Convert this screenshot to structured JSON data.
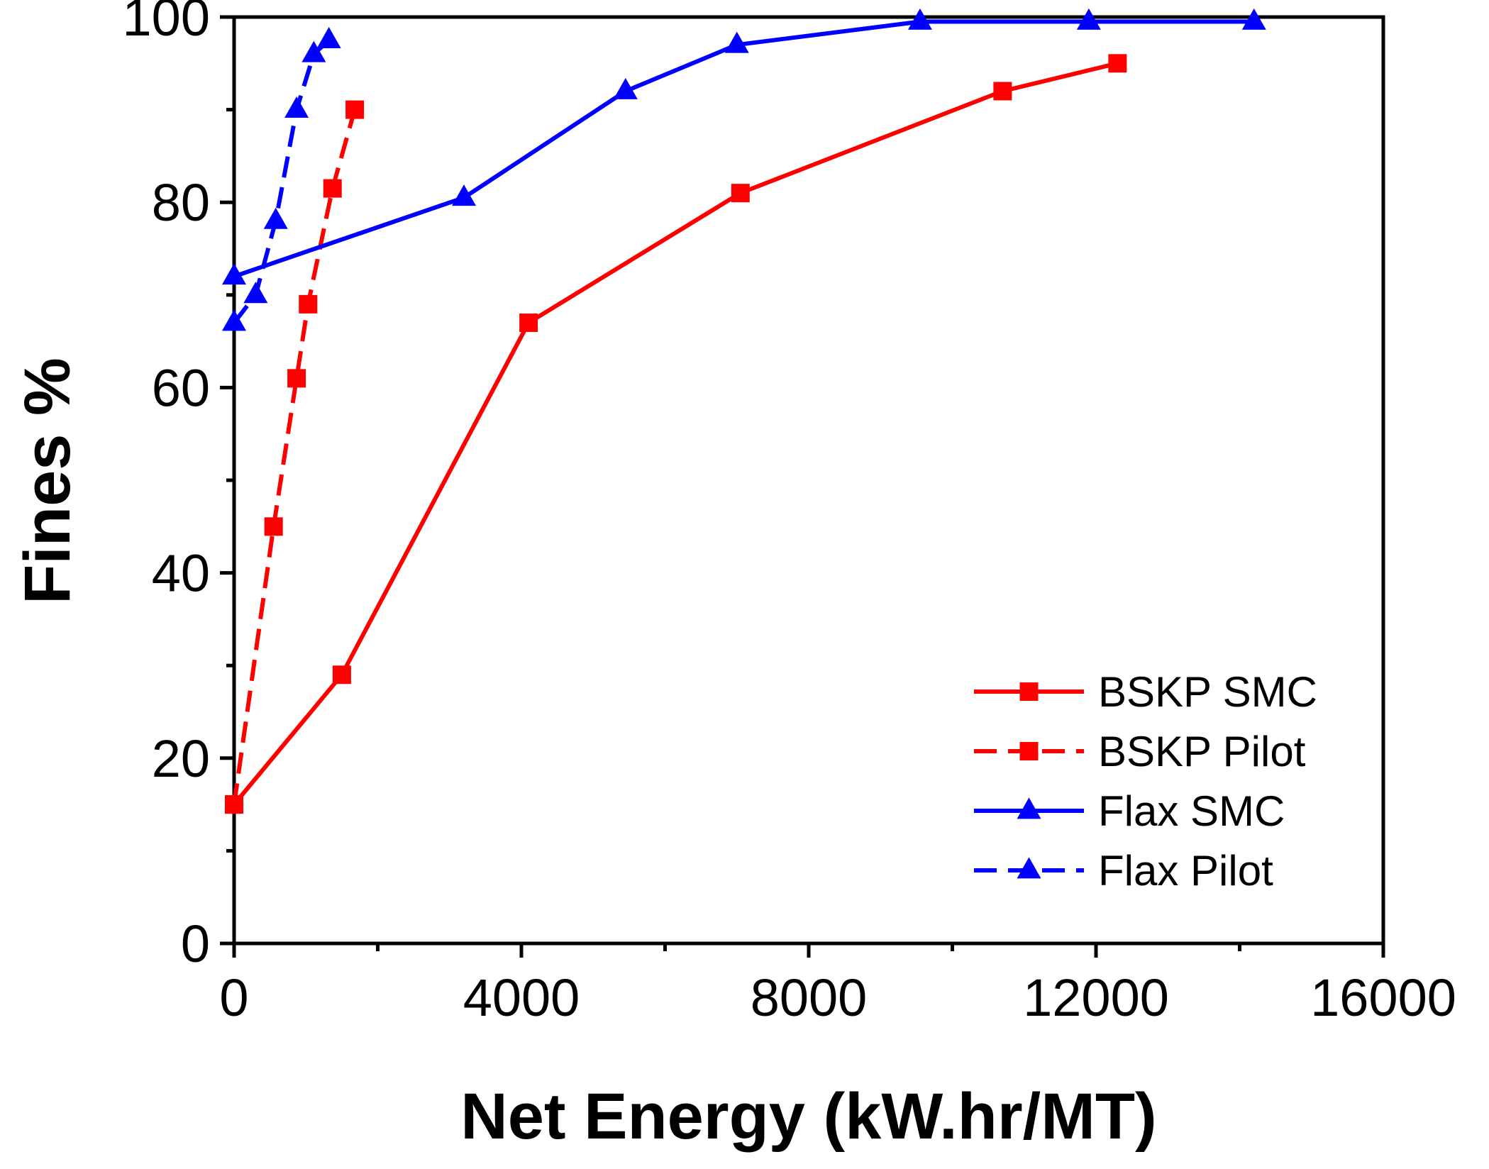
{
  "chart_data": {
    "type": "line",
    "xlabel": "Net Energy (kW.hr/MT)",
    "ylabel": "Fines %",
    "xlim": [
      0,
      16000
    ],
    "ylim": [
      0,
      100
    ],
    "xticks": [
      0,
      4000,
      8000,
      12000,
      16000
    ],
    "yticks": [
      0,
      20,
      40,
      60,
      80,
      100
    ],
    "grid": false,
    "legend_position": "bottom-right",
    "series": [
      {
        "name": "BSKP SMC",
        "color": "#ff0000",
        "dash": "solid",
        "marker": "square",
        "x": [
          0,
          1500,
          4100,
          7050,
          10700,
          12300
        ],
        "y": [
          15,
          29,
          67,
          81,
          92,
          95
        ]
      },
      {
        "name": "BSKP Pilot",
        "color": "#ff0000",
        "dash": "dashed",
        "marker": "square",
        "x": [
          0,
          550,
          870,
          1030,
          1370,
          1680
        ],
        "y": [
          15,
          45,
          61,
          69,
          81.5,
          90
        ]
      },
      {
        "name": "Flax SMC",
        "color": "#0000ff",
        "dash": "solid",
        "marker": "triangle",
        "x": [
          0,
          3200,
          5450,
          7000,
          9550,
          11900,
          14200
        ],
        "y": [
          72,
          80.5,
          92,
          97,
          99.5,
          99.5,
          99.5
        ]
      },
      {
        "name": "Flax Pilot",
        "color": "#0000ff",
        "dash": "dashed",
        "marker": "triangle",
        "x": [
          0,
          300,
          580,
          870,
          1110,
          1320
        ],
        "y": [
          67,
          70,
          78,
          90,
          96,
          97.5
        ]
      }
    ]
  }
}
